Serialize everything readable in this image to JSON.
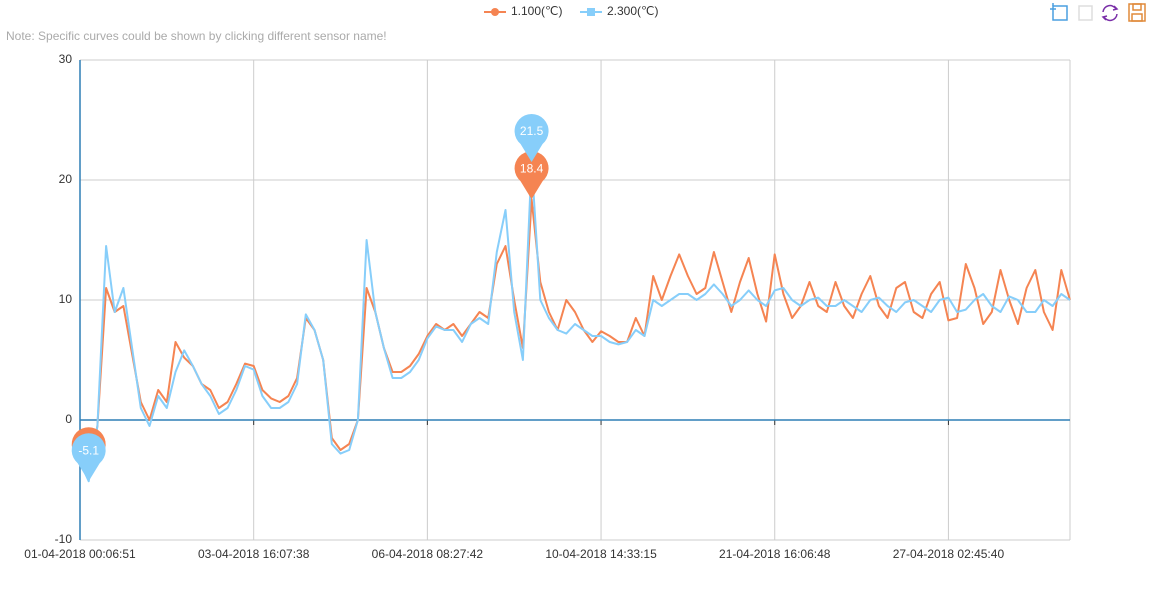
{
  "note": "Note: Specific curves could be shown by clicking different sensor name!",
  "chart_data": {
    "type": "line",
    "categories": [
      "01-04-2018 00:06:51",
      null,
      null,
      null,
      null,
      null,
      null,
      null,
      null,
      null,
      null,
      null,
      null,
      null,
      null,
      null,
      null,
      null,
      null,
      null,
      "03-04-2018 16:07:38",
      null,
      null,
      null,
      null,
      null,
      null,
      null,
      null,
      null,
      null,
      null,
      null,
      null,
      null,
      null,
      null,
      null,
      null,
      null,
      "06-04-2018 08:27:42",
      null,
      null,
      null,
      null,
      null,
      null,
      null,
      null,
      null,
      null,
      null,
      null,
      null,
      null,
      null,
      null,
      null,
      null,
      null,
      "10-04-2018 14:33:15",
      null,
      null,
      null,
      null,
      null,
      null,
      null,
      null,
      null,
      null,
      null,
      null,
      null,
      null,
      null,
      null,
      null,
      null,
      null,
      "21-04-2018 16:06:48",
      null,
      null,
      null,
      null,
      null,
      null,
      null,
      null,
      null,
      null,
      null,
      null,
      null,
      null,
      null,
      null,
      null,
      null,
      null,
      "27-04-2018 02:45:40",
      null,
      null,
      null,
      null,
      null,
      null,
      null,
      null,
      null,
      null,
      null,
      null,
      null,
      null
    ],
    "series": [
      {
        "name": "1.100(℃)",
        "color": "#f58452",
        "values": [
          -3,
          -4.6,
          -0.5,
          11,
          9,
          9.5,
          5.5,
          1.5,
          0,
          2.5,
          1.5,
          6.5,
          5.2,
          4.5,
          3,
          2.5,
          1,
          1.5,
          3,
          4.7,
          4.5,
          2.5,
          1.8,
          1.5,
          2,
          3.5,
          8.5,
          7.5,
          5,
          -1.5,
          -2.5,
          -2,
          0,
          11,
          9,
          6,
          4,
          4,
          4.5,
          5.5,
          7,
          8,
          7.5,
          8,
          7,
          8,
          9,
          8.5,
          13,
          14.5,
          10,
          6,
          18.4,
          11.5,
          9,
          7.5,
          10,
          9,
          7.5,
          6.5,
          7.4,
          7,
          6.5,
          6.5,
          8.5,
          7,
          12,
          10,
          12,
          13.8,
          12,
          10.5,
          11,
          14,
          11.5,
          9,
          11.5,
          13.5,
          10.5,
          8.2,
          13.8,
          10.5,
          8.5,
          9.5,
          11.5,
          9.5,
          9,
          11.5,
          9.5,
          8.5,
          10.5,
          12,
          9.5,
          8.5,
          11,
          11.5,
          9,
          8.5,
          10.5,
          11.5,
          8.3,
          8.5,
          13,
          11,
          8,
          9,
          12.5,
          10,
          8,
          11,
          12.5,
          9,
          7.5,
          12.5,
          10
        ]
      },
      {
        "name": "2.300(℃)",
        "color": "#87cefa",
        "values": [
          -3.5,
          -5.1,
          -0.5,
          14.5,
          9,
          11,
          6,
          1,
          -0.5,
          2,
          1,
          4,
          5.8,
          4.5,
          3,
          2,
          0.5,
          1,
          2.5,
          4.5,
          4.2,
          2,
          1,
          1,
          1.5,
          3,
          8.8,
          7.5,
          5,
          -2,
          -2.8,
          -2.5,
          0,
          15,
          9,
          6,
          3.5,
          3.5,
          4,
          5,
          6.8,
          7.8,
          7.5,
          7.5,
          6.5,
          8,
          8.5,
          8,
          14,
          17.5,
          9,
          5,
          21.5,
          10,
          8.5,
          7.5,
          7.2,
          8,
          7.5,
          7,
          7,
          6.5,
          6.3,
          6.5,
          7.5,
          7,
          10,
          9.5,
          10,
          10.5,
          10.5,
          10,
          10.5,
          11.3,
          10.5,
          9.5,
          10,
          10.8,
          10,
          9.5,
          10.8,
          11,
          10,
          9.5,
          10,
          10.2,
          9.5,
          9.5,
          10,
          9.5,
          9,
          10,
          10.2,
          9.5,
          9,
          9.8,
          10,
          9.5,
          9,
          10,
          10.2,
          9,
          9.2,
          10,
          10.5,
          9.5,
          9,
          10.3,
          10,
          9,
          9,
          10,
          9.5,
          10.5,
          10
        ]
      }
    ],
    "ylim": [
      -10,
      30
    ],
    "yticks": [
      -10,
      0,
      10,
      20,
      30
    ],
    "grid": true,
    "legend": "top"
  }
}
